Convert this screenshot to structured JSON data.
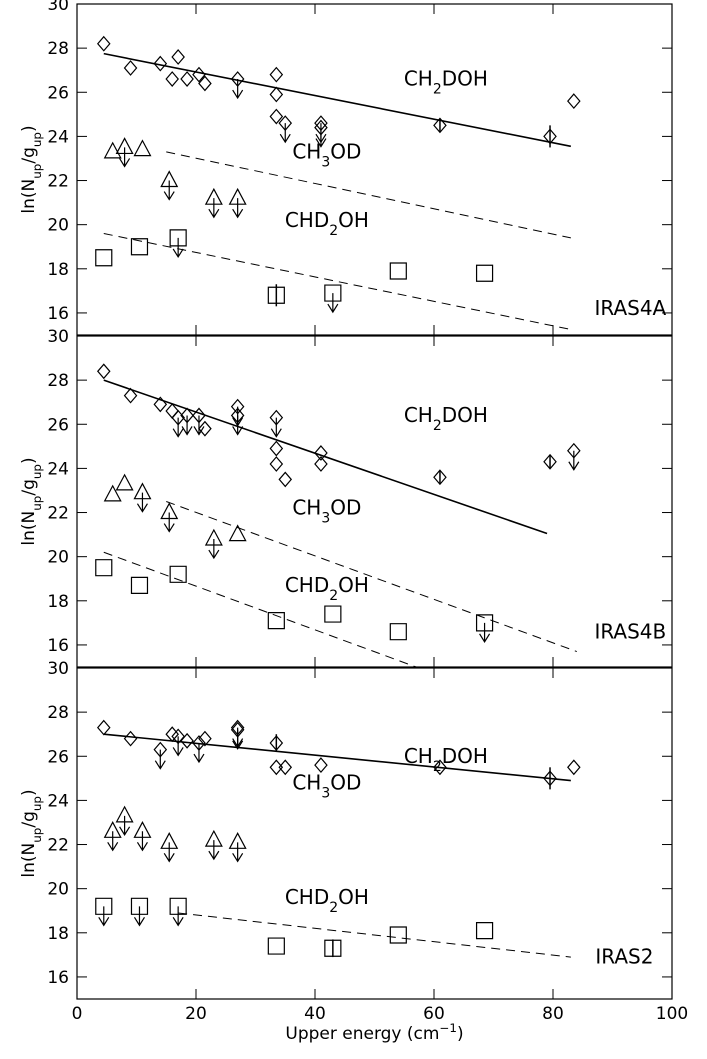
{
  "chart_data": [
    {
      "type": "scatter",
      "xlim": [
        0,
        100
      ],
      "xticks": [
        0,
        20,
        40,
        60,
        80,
        100
      ],
      "show_xtick_labels": false,
      "ylim": [
        15,
        30
      ],
      "yticks": [
        16,
        18,
        20,
        22,
        24,
        26,
        28,
        30
      ],
      "ylabel": [
        {
          "text": "ln(N"
        },
        {
          "text": "up",
          "sub": true
        },
        {
          "text": "/g"
        },
        {
          "text": "up",
          "sub": true
        },
        {
          "text": ")"
        }
      ],
      "label": "IRAS4A",
      "series": [
        {
          "name": [
            {
              "text": "CH"
            },
            {
              "text": "2",
              "sub": true
            },
            {
              "text": "DOH"
            }
          ],
          "marker": "diamond",
          "color": "#000000",
          "x": [
            4.5,
            9,
            14,
            16,
            17,
            18.5,
            20.5,
            21.5,
            27,
            33.5,
            33.5,
            33.5,
            35,
            41,
            41,
            61,
            79.5,
            83.5
          ],
          "y": [
            28.2,
            27.1,
            27.3,
            26.6,
            27.6,
            26.6,
            26.8,
            26.4,
            26.6,
            26.8,
            25.9,
            24.9,
            24.6,
            24.6,
            24.4,
            24.5,
            24.0,
            25.6
          ],
          "upper_limit": [
            false,
            false,
            false,
            false,
            false,
            false,
            false,
            false,
            true,
            false,
            false,
            false,
            true,
            true,
            true,
            false,
            false,
            false
          ],
          "yerr": [
            null,
            null,
            null,
            null,
            null,
            null,
            null,
            null,
            null,
            null,
            null,
            null,
            null,
            null,
            null,
            0.3,
            0.5,
            null
          ],
          "fit": {
            "x": [
              4.5,
              83
            ],
            "y": [
              27.75,
              23.55
            ],
            "dashed": false
          }
        },
        {
          "name": [
            {
              "text": "CH"
            },
            {
              "text": "3",
              "sub": true
            },
            {
              "text": "OD"
            }
          ],
          "marker": "triangle",
          "color": "#000000",
          "x": [
            6,
            8,
            11,
            15.5,
            23,
            27
          ],
          "y": [
            23.3,
            23.5,
            23.4,
            22.0,
            21.2,
            21.2
          ],
          "upper_limit": [
            false,
            true,
            false,
            true,
            true,
            true
          ],
          "yerr": [
            null,
            null,
            null,
            null,
            null,
            null
          ],
          "fit": {
            "x": [
              15,
              83
            ],
            "y": [
              23.3,
              19.4
            ],
            "dashed": true
          }
        },
        {
          "name": [
            {
              "text": "CHD"
            },
            {
              "text": "2",
              "sub": true
            },
            {
              "text": "OH"
            }
          ],
          "marker": "square",
          "color": "#000000",
          "x": [
            4.5,
            10.5,
            17,
            33.5,
            43,
            54,
            68.5
          ],
          "y": [
            18.5,
            19.0,
            19.4,
            16.8,
            16.9,
            17.9,
            17.8
          ],
          "upper_limit": [
            false,
            false,
            true,
            false,
            true,
            false,
            false
          ],
          "yerr": [
            null,
            null,
            null,
            0.5,
            null,
            null,
            null
          ],
          "fit": {
            "x": [
              4.5,
              83
            ],
            "y": [
              19.6,
              15.25
            ],
            "dashed": true
          }
        }
      ]
    },
    {
      "type": "scatter",
      "xlim": [
        0,
        100
      ],
      "xticks": [
        0,
        20,
        40,
        60,
        80,
        100
      ],
      "show_xtick_labels": false,
      "ylim": [
        15,
        30
      ],
      "yticks": [
        16,
        18,
        20,
        22,
        24,
        26,
        28,
        30
      ],
      "ylabel": [
        {
          "text": "ln(N"
        },
        {
          "text": "up",
          "sub": true
        },
        {
          "text": "/g"
        },
        {
          "text": "up",
          "sub": true
        },
        {
          "text": ")"
        }
      ],
      "label": "IRAS4B",
      "series": [
        {
          "name": [
            {
              "text": "CH"
            },
            {
              "text": "2",
              "sub": true
            },
            {
              "text": "DOH"
            }
          ],
          "marker": "diamond",
          "color": "#000000",
          "x": [
            4.5,
            9,
            14,
            16,
            17,
            18.5,
            20.5,
            21.5,
            27,
            27,
            33.5,
            33.5,
            33.5,
            35,
            41,
            41,
            61,
            79.5,
            83.5
          ],
          "y": [
            28.4,
            27.3,
            26.9,
            26.6,
            26.3,
            26.4,
            26.4,
            25.8,
            26.8,
            26.4,
            26.3,
            24.9,
            24.2,
            23.5,
            24.7,
            24.2,
            23.6,
            24.3,
            24.8
          ],
          "upper_limit": [
            false,
            false,
            false,
            false,
            true,
            true,
            true,
            false,
            true,
            true,
            true,
            false,
            false,
            false,
            false,
            false,
            false,
            false,
            true
          ],
          "yerr": [
            null,
            null,
            null,
            null,
            null,
            null,
            null,
            null,
            null,
            null,
            null,
            null,
            null,
            null,
            null,
            null,
            0.3,
            0.3,
            null
          ],
          "fit": {
            "x": [
              4.5,
              79
            ],
            "y": [
              28.0,
              21.05
            ],
            "dashed": false
          }
        },
        {
          "name": [
            {
              "text": "CH"
            },
            {
              "text": "3",
              "sub": true
            },
            {
              "text": "OD"
            }
          ],
          "marker": "triangle",
          "color": "#000000",
          "x": [
            6,
            8,
            11,
            15.5,
            23,
            27
          ],
          "y": [
            22.8,
            23.3,
            22.9,
            22.0,
            20.8,
            21.0
          ],
          "upper_limit": [
            false,
            false,
            true,
            true,
            true,
            false
          ],
          "yerr": [
            null,
            null,
            null,
            null,
            null,
            null
          ],
          "fit": {
            "x": [
              15,
              84
            ],
            "y": [
              22.5,
              15.7
            ],
            "dashed": true
          }
        },
        {
          "name": [
            {
              "text": "CHD"
            },
            {
              "text": "2",
              "sub": true
            },
            {
              "text": "OH"
            }
          ],
          "marker": "square",
          "color": "#000000",
          "x": [
            4.5,
            10.5,
            17,
            33.5,
            43,
            54,
            68.5
          ],
          "y": [
            19.5,
            18.7,
            19.2,
            17.1,
            17.4,
            16.6,
            17.0
          ],
          "upper_limit": [
            false,
            false,
            false,
            false,
            false,
            false,
            true
          ],
          "yerr": [
            null,
            null,
            null,
            null,
            null,
            null,
            null
          ],
          "fit": {
            "x": [
              4.5,
              57
            ],
            "y": [
              20.2,
              15.0
            ],
            "dashed": true
          }
        }
      ]
    },
    {
      "type": "scatter",
      "xlim": [
        0,
        100
      ],
      "xticks": [
        0,
        20,
        40,
        60,
        80,
        100
      ],
      "show_xtick_labels": true,
      "ylim": [
        15,
        30
      ],
      "yticks": [
        16,
        18,
        20,
        22,
        24,
        26,
        28,
        30
      ],
      "ylabel": [
        {
          "text": "ln(N"
        },
        {
          "text": "up",
          "sub": true
        },
        {
          "text": "/g"
        },
        {
          "text": "up",
          "sub": true
        },
        {
          "text": ")"
        }
      ],
      "xlabel": [
        {
          "text": "Upper energy (cm"
        },
        {
          "text": "−1",
          "sup": true
        },
        {
          "text": ")"
        }
      ],
      "label": "IRAS2",
      "series": [
        {
          "name": [
            {
              "text": "CH"
            },
            {
              "text": "2",
              "sub": true
            },
            {
              "text": "DOH"
            }
          ],
          "marker": "diamond",
          "color": "#000000",
          "x": [
            4.5,
            9,
            14,
            16,
            17,
            18.5,
            20.5,
            21.5,
            27,
            27,
            33.5,
            33.5,
            35,
            41,
            61,
            79.5,
            83.5
          ],
          "y": [
            27.3,
            26.8,
            26.3,
            27.0,
            26.9,
            26.7,
            26.6,
            26.8,
            27.3,
            27.2,
            26.6,
            25.5,
            25.5,
            25.6,
            25.5,
            25.0,
            25.5
          ],
          "upper_limit": [
            false,
            false,
            true,
            false,
            true,
            false,
            true,
            false,
            true,
            true,
            false,
            false,
            false,
            false,
            false,
            false,
            false
          ],
          "yerr": [
            null,
            null,
            null,
            null,
            null,
            null,
            null,
            null,
            null,
            null,
            0.4,
            null,
            null,
            null,
            null,
            0.5,
            null
          ],
          "fit": {
            "x": [
              4.5,
              83
            ],
            "y": [
              27.0,
              24.9
            ],
            "dashed": false
          }
        },
        {
          "name": [
            {
              "text": "CH"
            },
            {
              "text": "3",
              "sub": true
            },
            {
              "text": "OD"
            }
          ],
          "marker": "triangle",
          "color": "#000000",
          "x": [
            6,
            8,
            11,
            15.5,
            23,
            27
          ],
          "y": [
            22.6,
            23.3,
            22.6,
            22.1,
            22.2,
            22.1
          ],
          "upper_limit": [
            true,
            true,
            true,
            true,
            true,
            true
          ],
          "yerr": [
            null,
            null,
            null,
            null,
            null,
            null
          ]
        },
        {
          "name": [
            {
              "text": "CHD"
            },
            {
              "text": "2",
              "sub": true
            },
            {
              "text": "OH"
            }
          ],
          "marker": "square",
          "color": "#000000",
          "x": [
            4.5,
            10.5,
            17,
            33.5,
            43,
            54,
            68.5
          ],
          "y": [
            19.2,
            19.2,
            19.2,
            17.4,
            17.3,
            17.9,
            18.1
          ],
          "upper_limit": [
            true,
            true,
            true,
            false,
            false,
            false,
            false
          ],
          "yerr": [
            null,
            null,
            null,
            null,
            0.4,
            null,
            null
          ],
          "fit": {
            "x": [
              17,
              83
            ],
            "y": [
              18.9,
              16.9
            ],
            "dashed": true
          }
        }
      ]
    }
  ]
}
